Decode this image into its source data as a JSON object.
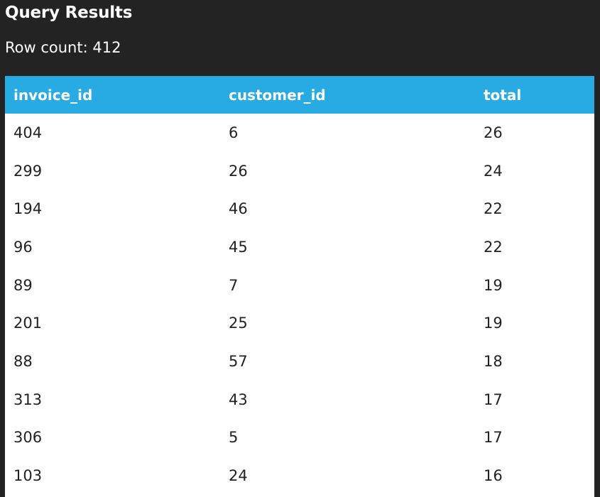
{
  "header": {
    "title": "Query Results",
    "row_count": "Row count: 412"
  },
  "colors": {
    "background": "#232323",
    "header_accent": "#28abe2",
    "table_background": "#ffffff"
  },
  "table": {
    "columns": [
      "invoice_id",
      "customer_id",
      "total"
    ],
    "rows": [
      [
        "404",
        "6",
        "26"
      ],
      [
        "299",
        "26",
        "24"
      ],
      [
        "194",
        "46",
        "22"
      ],
      [
        "96",
        "45",
        "22"
      ],
      [
        "89",
        "7",
        "19"
      ],
      [
        "201",
        "25",
        "19"
      ],
      [
        "88",
        "57",
        "18"
      ],
      [
        "313",
        "43",
        "17"
      ],
      [
        "306",
        "5",
        "17"
      ],
      [
        "103",
        "24",
        "16"
      ]
    ]
  }
}
